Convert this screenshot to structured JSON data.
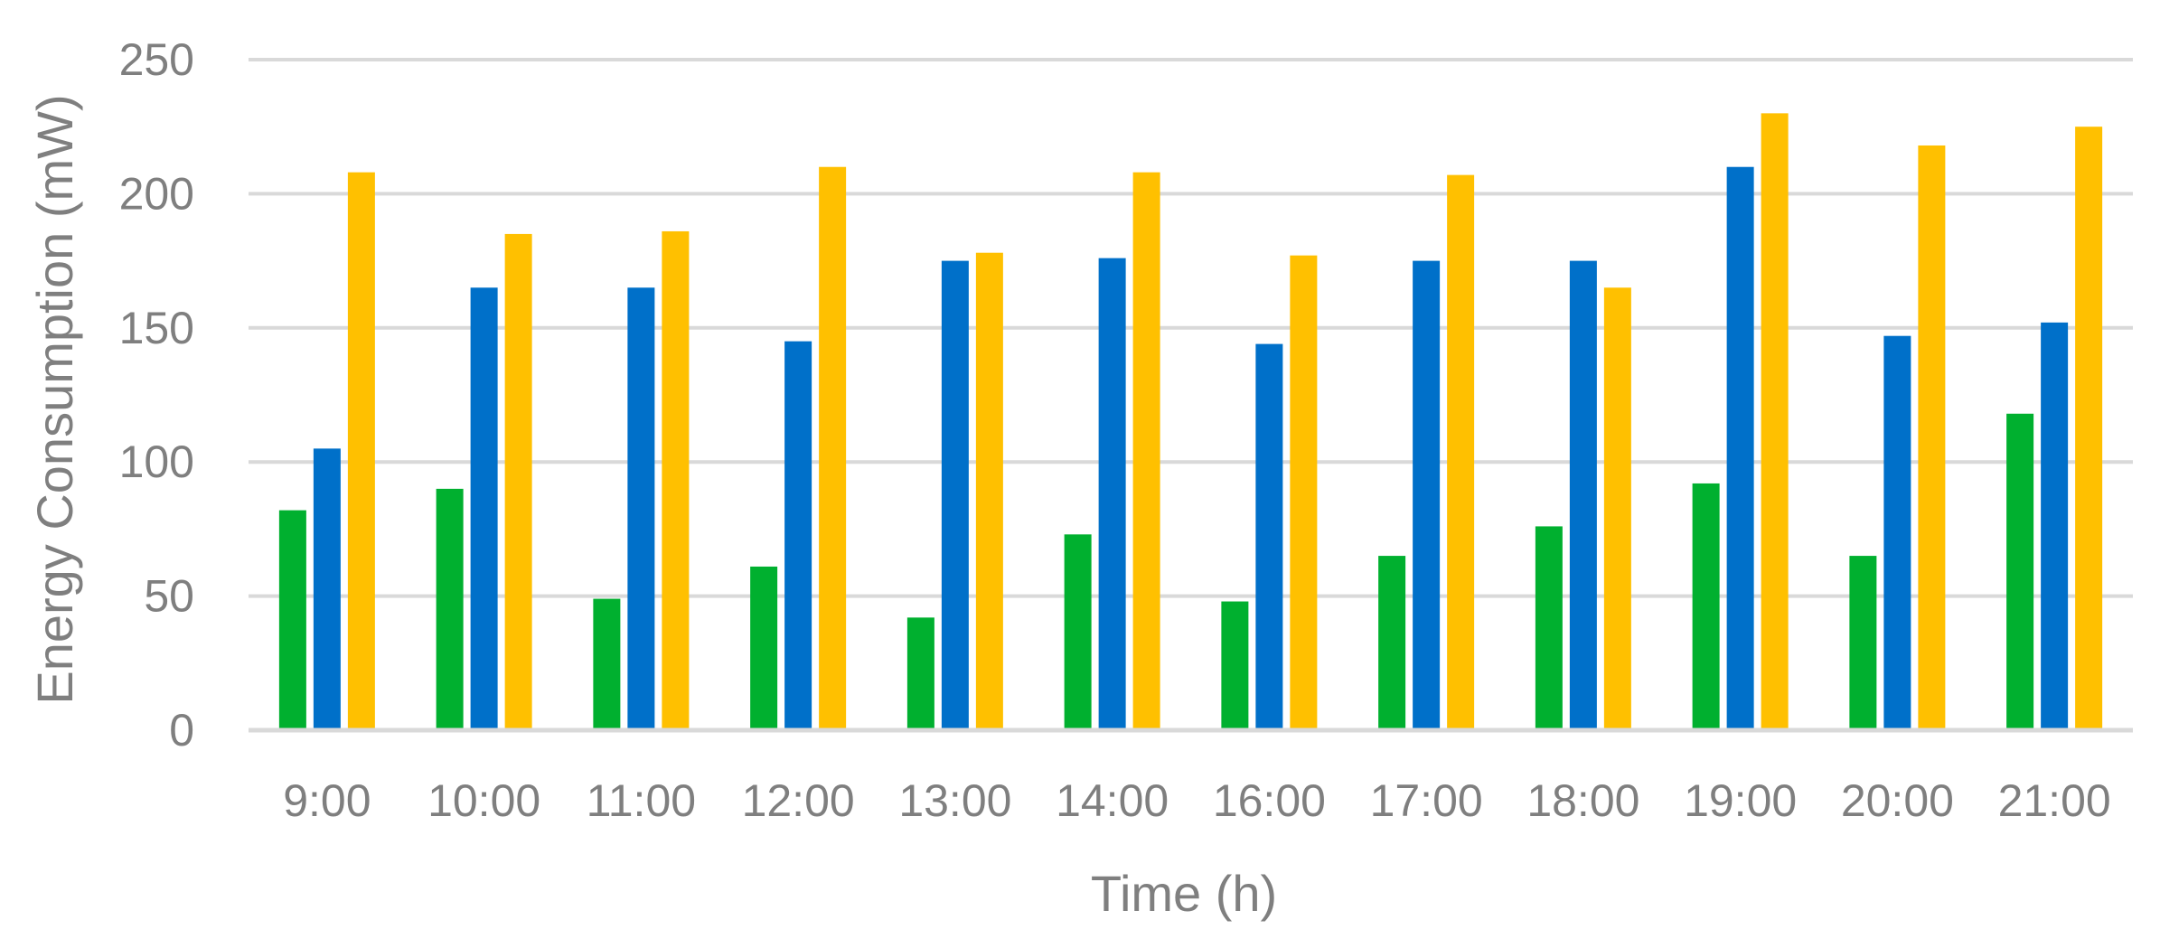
{
  "chart_data": {
    "type": "bar",
    "title": "",
    "xlabel": "Time (h)",
    "ylabel": "Energy Consumption (mW)",
    "ylim": [
      0,
      250
    ],
    "yticks": [
      0,
      50,
      100,
      150,
      200,
      250
    ],
    "ytick_labels": [
      "0",
      "50",
      "100",
      "150",
      "200",
      "250"
    ],
    "grid": true,
    "legend": "none",
    "categories": [
      "9:00",
      "10:00",
      "11:00",
      "12:00",
      "13:00",
      "14:00",
      "16:00",
      "17:00",
      "18:00",
      "19:00",
      "20:00",
      "21:00"
    ],
    "series": [
      {
        "color": "#00b02f",
        "values": [
          82,
          90,
          49,
          61,
          42,
          73,
          48,
          65,
          76,
          92,
          65,
          118
        ]
      },
      {
        "color": "#0070c9",
        "values": [
          105,
          165,
          165,
          145,
          175,
          176,
          144,
          175,
          175,
          210,
          147,
          152
        ]
      },
      {
        "color": "#ffc000",
        "values": [
          208,
          185,
          186,
          210,
          178,
          208,
          177,
          207,
          165,
          230,
          218,
          225
        ]
      }
    ]
  }
}
